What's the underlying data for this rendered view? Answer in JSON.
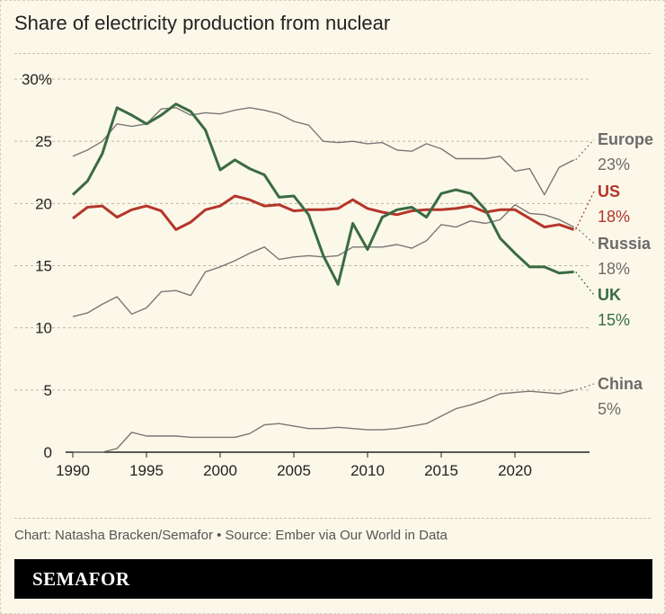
{
  "title": "Share of electricity production from nuclear",
  "source": "Chart: Natasha Bracken/Semafor • Source: Ember via Our World in Data",
  "brand": "SEMAFOR",
  "chart_data": {
    "type": "line",
    "title": "Share of electricity production from nuclear",
    "x": [
      1990,
      1991,
      1992,
      1993,
      1994,
      1995,
      1996,
      1997,
      1998,
      1999,
      2000,
      2001,
      2002,
      2003,
      2004,
      2005,
      2006,
      2007,
      2008,
      2009,
      2010,
      2011,
      2012,
      2013,
      2014,
      2015,
      2016,
      2017,
      2018,
      2019,
      2020,
      2021,
      2022,
      2023,
      2024
    ],
    "xlim": [
      1990,
      2024
    ],
    "ylim": [
      0,
      30
    ],
    "x_ticks": [
      "1990",
      "1995",
      "2000",
      "2005",
      "2010",
      "2015",
      "2020"
    ],
    "y_ticks": [
      "0",
      "5",
      "10",
      "15",
      "20",
      "25",
      "30%"
    ],
    "grid": true,
    "series": [
      {
        "name": "Europe",
        "end_label": "23%",
        "color": "#7a7677",
        "width": 1.4,
        "values": [
          23.8,
          24.3,
          25.0,
          26.4,
          26.2,
          26.4,
          27.6,
          27.7,
          27.1,
          27.3,
          27.2,
          27.5,
          27.7,
          27.5,
          27.2,
          26.6,
          26.3,
          25.0,
          24.9,
          25.0,
          24.8,
          24.9,
          24.3,
          24.2,
          24.8,
          24.4,
          23.6,
          23.6,
          23.6,
          23.8,
          22.6,
          22.8,
          20.7,
          22.9,
          23.5
        ]
      },
      {
        "name": "Russia",
        "end_label": "18%",
        "color": "#7a7677",
        "width": 1.4,
        "values": [
          10.9,
          11.2,
          11.9,
          12.5,
          11.1,
          11.6,
          12.9,
          13.0,
          12.6,
          14.5,
          14.9,
          15.4,
          16.0,
          16.5,
          15.5,
          15.7,
          15.8,
          15.7,
          15.8,
          16.5,
          16.5,
          16.5,
          16.7,
          16.4,
          17.0,
          18.3,
          18.1,
          18.6,
          18.4,
          18.7,
          19.9,
          19.2,
          19.1,
          18.7,
          18.1
        ]
      },
      {
        "name": "China",
        "end_label": "5%",
        "color": "#7a7677",
        "width": 1.4,
        "values": [
          0,
          0,
          0,
          0.3,
          1.6,
          1.3,
          1.3,
          1.3,
          1.2,
          1.2,
          1.2,
          1.2,
          1.5,
          2.2,
          2.3,
          2.1,
          1.9,
          1.9,
          2.0,
          1.9,
          1.8,
          1.8,
          1.9,
          2.1,
          2.3,
          2.9,
          3.5,
          3.8,
          4.2,
          4.7,
          4.8,
          4.9,
          4.8,
          4.7,
          5.0
        ]
      },
      {
        "name": "US",
        "end_label": "18%",
        "color": "#b5352a",
        "width": 3,
        "values": [
          18.8,
          19.7,
          19.8,
          18.9,
          19.5,
          19.8,
          19.4,
          17.9,
          18.5,
          19.5,
          19.8,
          20.6,
          20.3,
          19.8,
          19.9,
          19.4,
          19.5,
          19.5,
          19.6,
          20.3,
          19.6,
          19.3,
          19.1,
          19.4,
          19.5,
          19.5,
          19.6,
          19.8,
          19.3,
          19.5,
          19.5,
          18.8,
          18.1,
          18.3,
          17.9
        ]
      },
      {
        "name": "UK",
        "end_label": "15%",
        "color": "#3a6b41",
        "width": 3,
        "values": [
          20.7,
          21.8,
          24.0,
          27.7,
          27.1,
          26.4,
          27.1,
          28.0,
          27.4,
          25.9,
          22.7,
          23.5,
          22.8,
          22.3,
          20.5,
          20.6,
          19.1,
          15.8,
          13.5,
          18.4,
          16.3,
          18.9,
          19.5,
          19.7,
          18.9,
          20.8,
          21.1,
          20.8,
          19.5,
          17.2,
          16.0,
          14.9,
          14.9,
          14.4,
          14.5
        ]
      }
    ]
  }
}
